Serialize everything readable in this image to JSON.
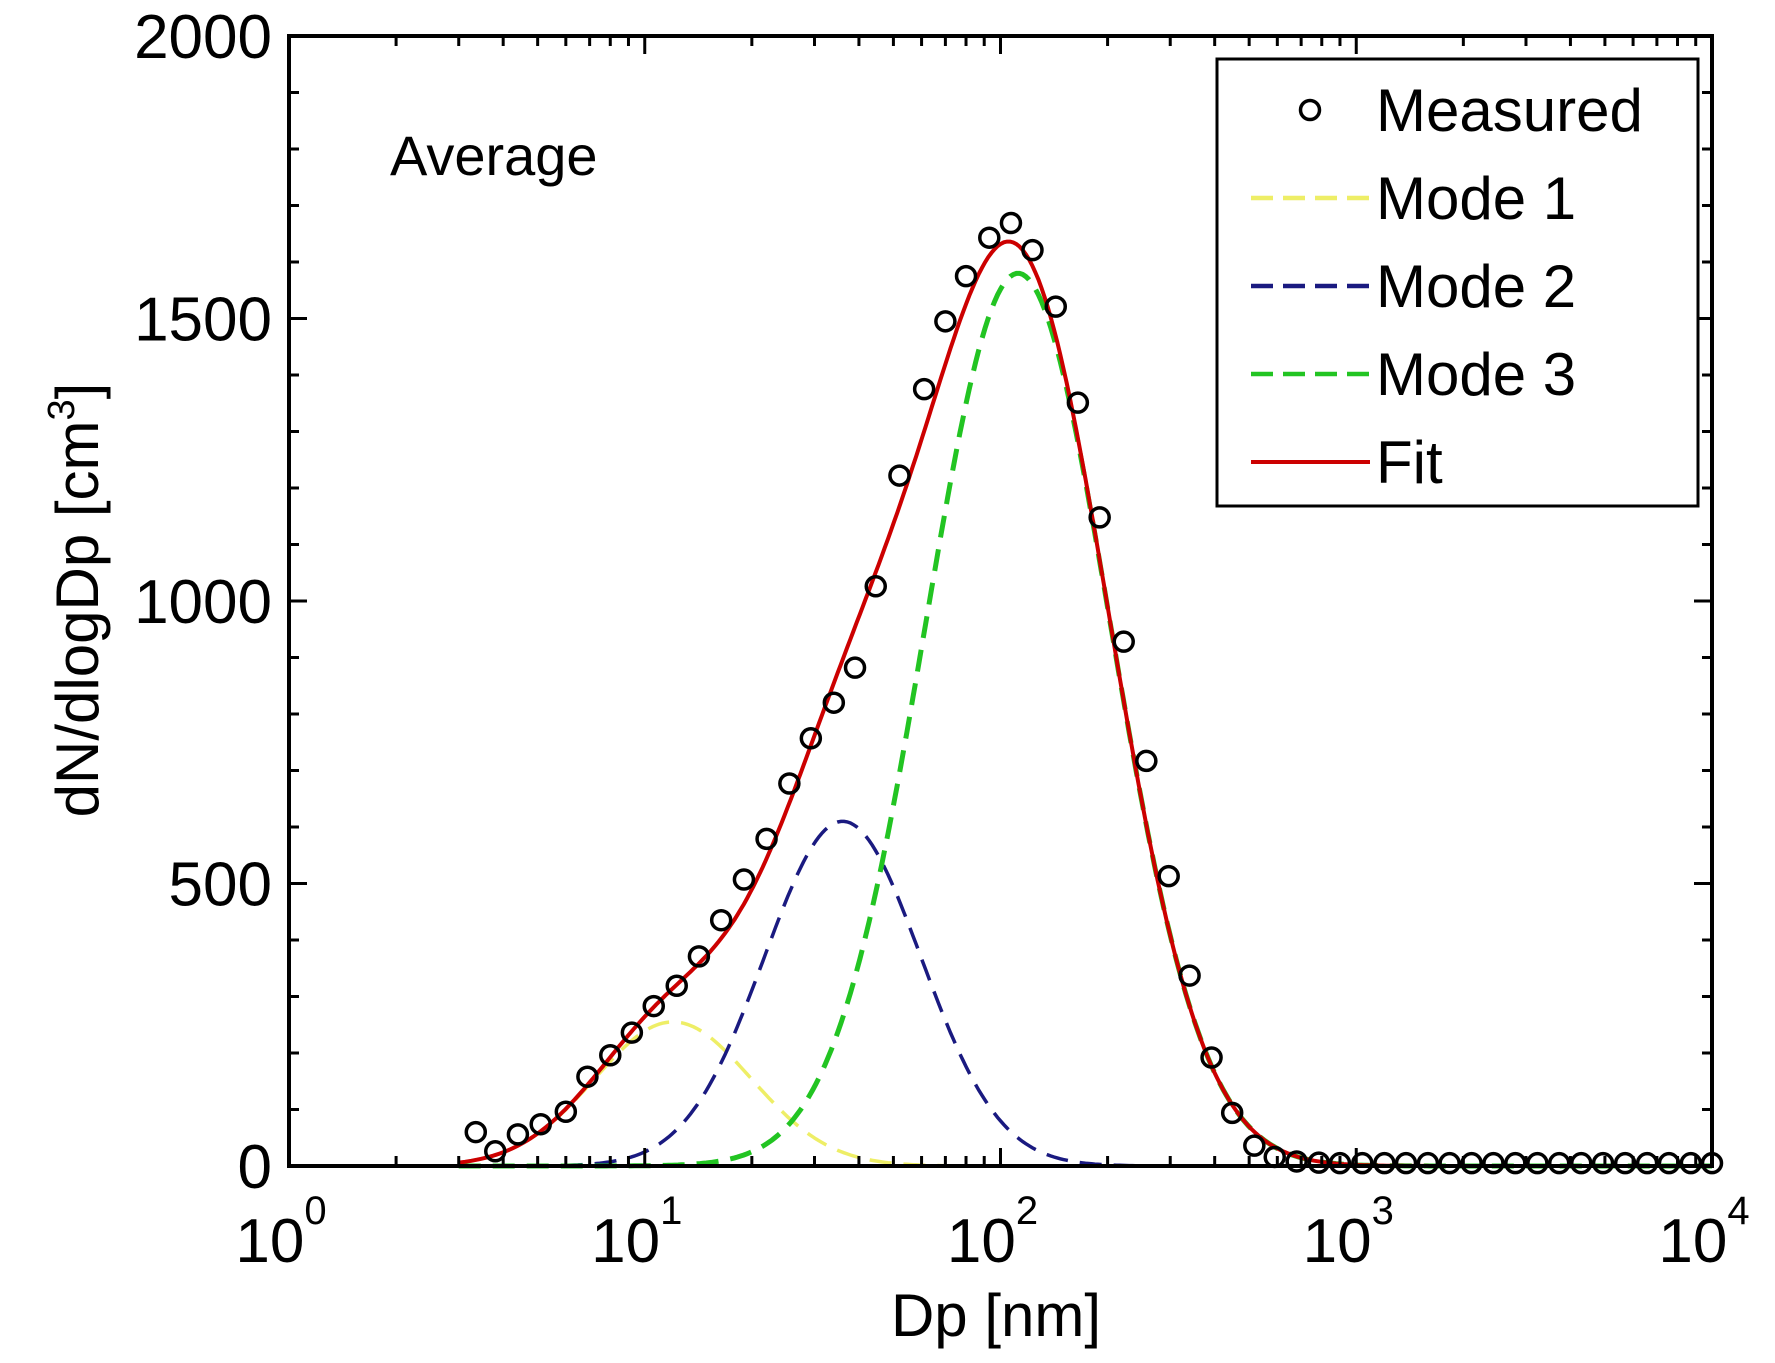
{
  "chart_data": {
    "type": "scatter",
    "title": "",
    "annotation": "Average",
    "xlabel": "Dp [nm]",
    "ylabel": "dN/dlogDp [cm",
    "ylabel_sup": "3",
    "ylabel_close": "]",
    "xscale": "log",
    "xlim": [
      1,
      10000
    ],
    "ylim": [
      0,
      2000
    ],
    "xticks": [
      {
        "base": "10",
        "exp": "0",
        "value": 1
      },
      {
        "base": "10",
        "exp": "1",
        "value": 10
      },
      {
        "base": "10",
        "exp": "2",
        "value": 100
      },
      {
        "base": "10",
        "exp": "3",
        "value": 1000
      },
      {
        "base": "10",
        "exp": "4",
        "value": 10000
      }
    ],
    "yticks": [
      {
        "label": "0",
        "value": 0
      },
      {
        "label": "500",
        "value": 500
      },
      {
        "label": "1000",
        "value": 1000
      },
      {
        "label": "1500",
        "value": 1500
      },
      {
        "label": "2000",
        "value": 2000
      }
    ],
    "legend_position": "top-right",
    "colors": {
      "measured": "#000000",
      "mode1": "#eeee66",
      "mode2": "#1a1a80",
      "mode3": "#22c422",
      "fit": "#cc0000"
    },
    "legend": [
      {
        "key": "measured",
        "label": "Measured",
        "style": "marker"
      },
      {
        "key": "mode1",
        "label": "Mode 1",
        "style": "dashed"
      },
      {
        "key": "mode2",
        "label": "Mode 2",
        "style": "dashed"
      },
      {
        "key": "mode3",
        "label": "Mode 3",
        "style": "dashed"
      },
      {
        "key": "fit",
        "label": "Fit",
        "style": "solid"
      }
    ],
    "measured": {
      "x": [
        3.35,
        3.8,
        4.4,
        5.1,
        6.0,
        6.9,
        8.0,
        9.2,
        10.6,
        12.3,
        14.2,
        16.4,
        19.0,
        22.0,
        25.5,
        29.3,
        34.0,
        39.0,
        44.6,
        52,
        61,
        70,
        80,
        93,
        107,
        123,
        143,
        165,
        190,
        222,
        257,
        297,
        340,
        392,
        448,
        517,
        590,
        680,
        785,
        900,
        1040,
        1200,
        1380,
        1590,
        1830,
        2110,
        2430,
        2800,
        3230,
        3720,
        4290,
        4940,
        5700,
        6570,
        7570,
        8720,
        10000
      ],
      "y": [
        60,
        26,
        56,
        74,
        96,
        158,
        196,
        236,
        283,
        319,
        371,
        435,
        507,
        579,
        677,
        757,
        820,
        882,
        1026,
        1222,
        1375,
        1495,
        1575,
        1643,
        1669,
        1621,
        1521,
        1351,
        1148,
        928,
        717,
        513,
        337,
        192,
        94,
        36,
        16,
        8,
        6,
        5,
        5,
        5,
        5,
        5,
        5,
        5,
        5,
        5,
        5,
        5,
        5,
        5,
        5,
        5,
        5,
        5,
        5
      ]
    },
    "modes": [
      {
        "name": "Mode 1",
        "amplitude": 255,
        "geometric_mean_nm": 12,
        "log10_sigma": 0.22
      },
      {
        "name": "Mode 2",
        "amplitude": 610,
        "geometric_mean_nm": 36,
        "log10_sigma": 0.22
      },
      {
        "name": "Mode 3",
        "amplitude": 1580,
        "geometric_mean_nm": 112,
        "log10_sigma": 0.26
      }
    ],
    "fit_range_nm": [
      3,
      10000
    ]
  }
}
